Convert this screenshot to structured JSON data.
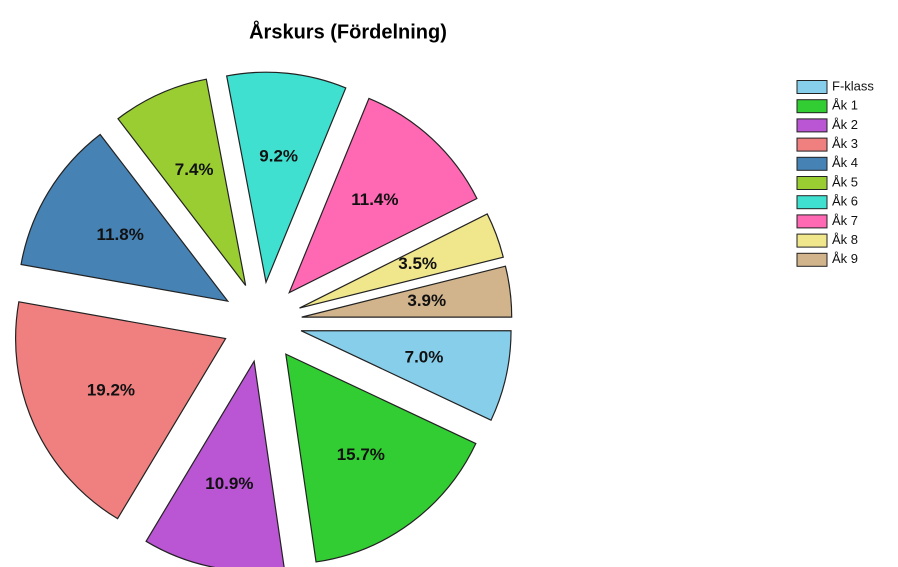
{
  "chart_data": {
    "type": "pie",
    "title": "Årskurs (Fördelning)",
    "categories": [
      "F-klass",
      "Åk 1",
      "Åk 2",
      "Åk 3",
      "Åk 4",
      "Åk 5",
      "Åk 6",
      "Åk 7",
      "Åk 8",
      "Åk 9"
    ],
    "values": [
      7.0,
      15.7,
      10.9,
      19.2,
      11.8,
      7.4,
      9.2,
      11.4,
      3.5,
      3.9
    ],
    "value_labels": [
      "7.0%",
      "15.7%",
      "10.9%",
      "19.2%",
      "11.8%",
      "7.4%",
      "9.2%",
      "11.4%",
      "3.5%",
      "3.9%"
    ],
    "colors": [
      "#87ceeb",
      "#32cd32",
      "#ba55d3",
      "#f08080",
      "#4682b4",
      "#9acd32",
      "#40e0d0",
      "#ff69b4",
      "#f0e68c",
      "#d2b48c"
    ],
    "legend": "upper right"
  }
}
